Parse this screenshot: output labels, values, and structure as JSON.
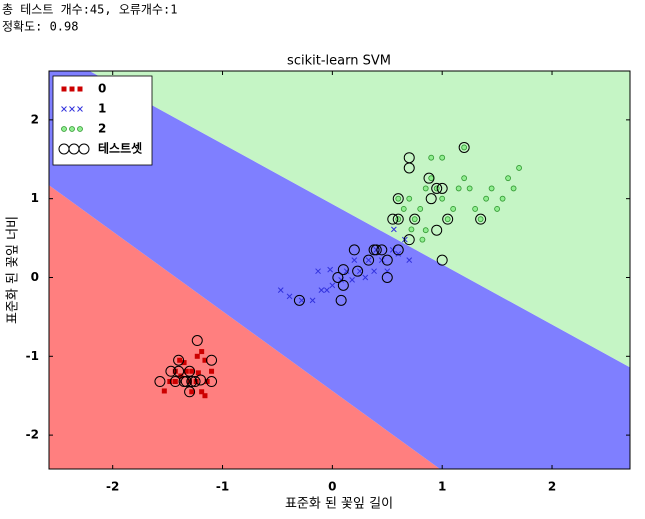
{
  "header": {
    "line1": "총 테스트 개수:45, 오류개수:1",
    "line2": "정확도: 0.98"
  },
  "chart_data": {
    "type": "scatter",
    "title": "scikit-learn SVM",
    "xlabel": "표준화 된 꽃잎 길이",
    "ylabel": "표준화 된 꽃잎 너비",
    "xlim": [
      -2.58,
      2.71
    ],
    "ylim": [
      -2.43,
      2.62
    ],
    "xticks": [
      -2,
      -1,
      0,
      1,
      2
    ],
    "yticks": [
      -2,
      -1,
      0,
      1,
      2
    ],
    "legend": "upper left",
    "decision_regions": [
      {
        "color": "#ff7f7f",
        "x": [
          -2.58,
          0.98,
          -2.58
        ],
        "y": [
          1.17,
          -2.43,
          -2.43
        ]
      },
      {
        "color": "#7f7fff",
        "x": [
          -2.58,
          -2.58,
          -2.21,
          2.71,
          2.71,
          0.98
        ],
        "y": [
          1.17,
          2.62,
          2.62,
          -1.14,
          -2.43,
          -2.43
        ]
      },
      {
        "color": "#c5f5c5",
        "x": [
          -2.21,
          2.71,
          2.71
        ],
        "y": [
          2.62,
          2.62,
          -1.14
        ]
      }
    ],
    "series": [
      {
        "name": "0",
        "color": "#cc0000",
        "marker": "s",
        "x": [
          -1.53,
          -1.48,
          -1.43,
          -1.38,
          -1.35,
          -1.3,
          -1.28,
          -1.23,
          -1.19,
          -1.16,
          -1.14,
          -1.1,
          -1.43,
          -1.33,
          -1.24,
          -1.19,
          -1.28,
          -1.39,
          -1.22,
          -1.16
        ],
        "y": [
          -1.44,
          -1.32,
          -1.19,
          -1.25,
          -1.08,
          -1.32,
          -1.45,
          -1.0,
          -0.94,
          -1.05,
          -1.32,
          -1.19,
          -1.32,
          -1.19,
          -1.32,
          -1.45,
          -1.19,
          -1.05,
          -1.21,
          -1.5
        ]
      },
      {
        "name": "1",
        "color": "#3333dd",
        "marker": "x",
        "x": [
          -0.47,
          -0.39,
          -0.28,
          -0.18,
          -0.13,
          -0.05,
          0.0,
          0.08,
          0.13,
          0.2,
          0.25,
          0.3,
          0.33,
          0.38,
          0.4,
          0.45,
          0.5,
          0.55,
          0.6,
          0.66,
          0.7,
          0.56,
          -0.02,
          0.18,
          -0.1
        ],
        "y": [
          -0.16,
          -0.24,
          -0.29,
          -0.29,
          0.08,
          -0.16,
          -0.1,
          -0.03,
          0.08,
          0.22,
          0.08,
          0.0,
          0.22,
          0.08,
          0.35,
          0.22,
          0.08,
          0.35,
          0.3,
          0.48,
          0.22,
          0.61,
          0.1,
          -0.03,
          -0.16
        ]
      },
      {
        "name": "2",
        "color": "#339933",
        "marker": "o",
        "x": [
          0.6,
          0.65,
          0.7,
          0.72,
          0.75,
          0.8,
          0.85,
          0.9,
          0.95,
          1.0,
          1.05,
          1.1,
          1.15,
          1.2,
          1.25,
          1.3,
          1.35,
          1.4,
          1.45,
          1.5,
          1.6,
          1.65,
          1.7,
          1.55,
          0.9,
          1.0,
          1.2,
          0.6,
          0.85,
          0.82
        ],
        "y": [
          0.74,
          0.87,
          1.0,
          0.61,
          0.74,
          0.87,
          1.13,
          1.26,
          1.13,
          1.0,
          0.74,
          0.87,
          1.13,
          1.26,
          1.13,
          0.87,
          0.74,
          1.0,
          1.13,
          0.87,
          1.26,
          1.13,
          1.39,
          1.0,
          1.52,
          1.52,
          1.65,
          1.0,
          0.6,
          0.48
        ]
      },
      {
        "name": "테스트셋",
        "color": "#000000",
        "marker": "ring",
        "x": [
          -1.57,
          -1.43,
          -1.33,
          -1.28,
          -1.3,
          -1.25,
          -1.2,
          -1.1,
          -1.1,
          -1.23,
          -1.4,
          -1.4,
          -1.3,
          -1.35,
          -1.47,
          -0.3,
          0.08,
          0.1,
          0.05,
          0.2,
          0.23,
          0.38,
          0.4,
          0.45,
          0.5,
          0.5,
          0.33,
          0.6,
          0.7,
          0.1,
          0.6,
          0.55,
          0.6,
          0.7,
          0.7,
          0.75,
          0.88,
          0.95,
          1.0,
          1.05,
          1.2,
          1.35,
          0.9,
          0.95,
          1.0
        ],
        "y": [
          -1.32,
          -1.32,
          -1.32,
          -1.32,
          -1.45,
          -1.32,
          -1.3,
          -1.32,
          -1.05,
          -0.8,
          -1.05,
          -1.19,
          -1.19,
          -1.32,
          -1.19,
          -0.29,
          -0.29,
          0.1,
          0.0,
          0.35,
          0.08,
          0.35,
          0.35,
          0.35,
          0.22,
          0.0,
          0.22,
          0.35,
          0.48,
          -0.1,
          1.0,
          0.74,
          0.74,
          1.39,
          1.52,
          0.74,
          1.26,
          1.13,
          0.22,
          0.74,
          1.65,
          0.74,
          1.0,
          0.6,
          1.13
        ]
      }
    ]
  }
}
